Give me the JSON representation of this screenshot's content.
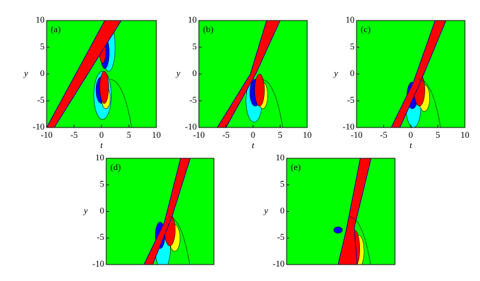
{
  "chart_data": [
    {
      "type": "contour",
      "label": "(a)",
      "xlabel": "t",
      "ylabel": "y",
      "xlim": [
        -10,
        10
      ],
      "ylim": [
        -10,
        10
      ],
      "xticks": [
        -10,
        -5,
        0,
        5,
        10
      ],
      "yticks": [
        -10,
        -5,
        0,
        5,
        10
      ]
    },
    {
      "type": "contour",
      "label": "(b)",
      "xlabel": "t",
      "ylabel": "y",
      "xlim": [
        -10,
        10
      ],
      "ylim": [
        -10,
        10
      ],
      "xticks": [
        -10,
        -5,
        0,
        5,
        10
      ],
      "yticks": [
        -10,
        -5,
        0,
        5,
        10
      ]
    },
    {
      "type": "contour",
      "label": "(c)",
      "xlabel": "t",
      "ylabel": "y",
      "xlim": [
        -10,
        10
      ],
      "ylim": [
        -10,
        10
      ],
      "xticks": [
        -10,
        -5,
        0,
        5,
        10
      ],
      "yticks": [
        -10,
        -5,
        0,
        5,
        10
      ]
    },
    {
      "type": "contour",
      "label": "(d)",
      "ylabel": "y",
      "xlim": [
        -10,
        10
      ],
      "ylim": [
        -10,
        10
      ],
      "yticks": [
        -10,
        -5,
        0,
        5,
        10
      ]
    },
    {
      "type": "contour",
      "label": "(e)",
      "ylabel": "y",
      "xlim": [
        -10,
        10
      ],
      "ylim": [
        -10,
        10
      ],
      "yticks": [
        -10,
        -5,
        0,
        5,
        10
      ]
    }
  ]
}
